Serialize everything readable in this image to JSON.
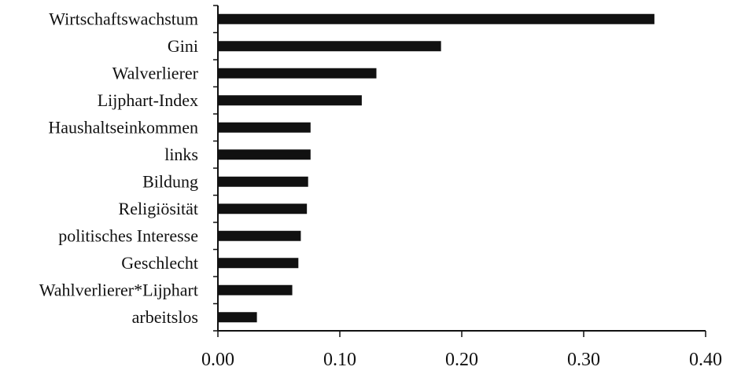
{
  "chart_data": {
    "type": "bar",
    "orientation": "horizontal",
    "categories": [
      "Wirtschaftswachstum",
      "Gini",
      "Walverlierer",
      "Lijphart-Index",
      "Haushaltseinkommen",
      "links",
      "Bildung",
      "Religiösität",
      "politisches Interesse",
      "Geschlecht",
      "Wahlverlierer*Lijphart",
      "arbeitslos"
    ],
    "values": [
      0.358,
      0.183,
      0.13,
      0.118,
      0.076,
      0.076,
      0.074,
      0.073,
      0.068,
      0.066,
      0.061,
      0.032
    ],
    "xlim": [
      0.0,
      0.4
    ],
    "xticks": [
      "0.00",
      "0.10",
      "0.20",
      "0.30",
      "0.40"
    ],
    "bar_color": "#111111",
    "title": "",
    "xlabel": "",
    "ylabel": ""
  }
}
